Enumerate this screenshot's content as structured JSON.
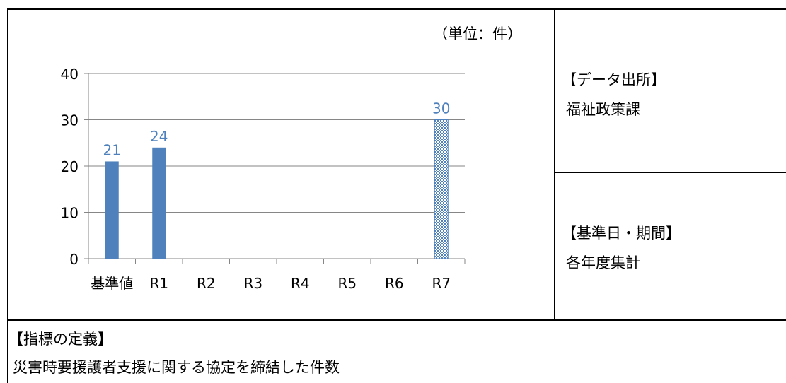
{
  "unit_label": "（単位：件）",
  "source": {
    "heading": "【データ出所】",
    "value": "福祉政策課"
  },
  "period": {
    "heading": "【基準日・期間】",
    "value": "各年度集計"
  },
  "definition": {
    "heading": "【指標の定義】",
    "value": "災害時要援護者支援に関する協定を締結した件数"
  },
  "chart_data": {
    "type": "bar",
    "categories": [
      "基準値",
      "R1",
      "R2",
      "R3",
      "R4",
      "R5",
      "R6",
      "R7"
    ],
    "values": [
      21,
      24,
      null,
      null,
      null,
      null,
      null,
      30
    ],
    "target_index": 7,
    "data_labels": [
      "21",
      "24",
      "",
      "",
      "",
      "",
      "",
      "30"
    ],
    "ylim": [
      0,
      40
    ],
    "yticks": [
      0,
      10,
      20,
      30,
      40
    ],
    "grid": true,
    "colors": {
      "bar": "#4f81bd",
      "label": "#4f81bd",
      "target_pattern": "#4f81bd",
      "grid": "#868686"
    }
  }
}
